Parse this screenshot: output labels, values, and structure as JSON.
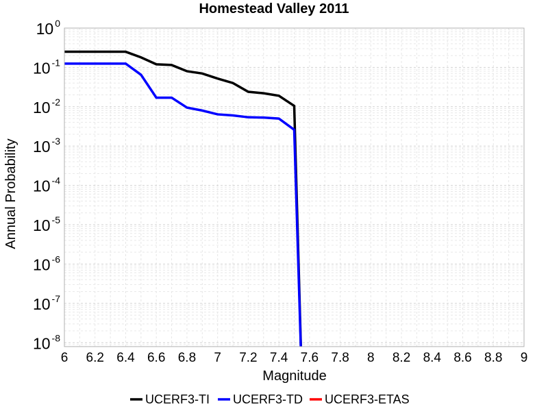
{
  "chart_data": {
    "type": "line",
    "title": "Homestead Valley 2011",
    "xlabel": "Magnitude",
    "ylabel": "Annual Probability",
    "xlim": [
      6,
      9
    ],
    "ylim_log10": [
      -8.1,
      0
    ],
    "y_scale": "log",
    "grid": true,
    "legend_position": "bottom",
    "x_ticks": [
      "6",
      "6.2",
      "6.4",
      "6.6",
      "6.8",
      "7",
      "7.2",
      "7.4",
      "7.6",
      "7.8",
      "8",
      "8.2",
      "8.4",
      "8.6",
      "8.8",
      "9"
    ],
    "y_ticks": [
      {
        "base": "10",
        "exp": "0",
        "log": 0
      },
      {
        "base": "10",
        "exp": "-1",
        "log": -1
      },
      {
        "base": "10",
        "exp": "-2",
        "log": -2
      },
      {
        "base": "10",
        "exp": "-3",
        "log": -3
      },
      {
        "base": "10",
        "exp": "-4",
        "log": -4
      },
      {
        "base": "10",
        "exp": "-5",
        "log": -5
      },
      {
        "base": "10",
        "exp": "-6",
        "log": -6
      },
      {
        "base": "10",
        "exp": "-7",
        "log": -7
      },
      {
        "base": "10",
        "exp": "-8",
        "log": -8
      }
    ],
    "series": [
      {
        "name": "UCERF3-TI",
        "color": "#000000",
        "x": [
          6.0,
          6.1,
          6.2,
          6.3,
          6.4,
          6.5,
          6.6,
          6.7,
          6.8,
          6.9,
          7.0,
          7.1,
          7.2,
          7.3,
          7.4,
          7.5,
          7.55
        ],
        "y": [
          0.25,
          0.25,
          0.25,
          0.25,
          0.25,
          0.18,
          0.12,
          0.115,
          0.08,
          0.07,
          0.052,
          0.04,
          0.024,
          0.022,
          0.019,
          0.0105,
          1e-09
        ]
      },
      {
        "name": "UCERF3-TD",
        "color": "#0000ff",
        "x": [
          6.0,
          6.1,
          6.2,
          6.3,
          6.4,
          6.5,
          6.6,
          6.7,
          6.8,
          6.9,
          7.0,
          7.1,
          7.2,
          7.3,
          7.4,
          7.5,
          7.55
        ],
        "y": [
          0.125,
          0.125,
          0.125,
          0.125,
          0.125,
          0.065,
          0.017,
          0.017,
          0.0095,
          0.008,
          0.0064,
          0.006,
          0.0054,
          0.0053,
          0.005,
          0.0026,
          1e-09
        ]
      },
      {
        "name": "UCERF3-ETAS",
        "color": "#ff0000",
        "x": [],
        "y": []
      }
    ]
  }
}
